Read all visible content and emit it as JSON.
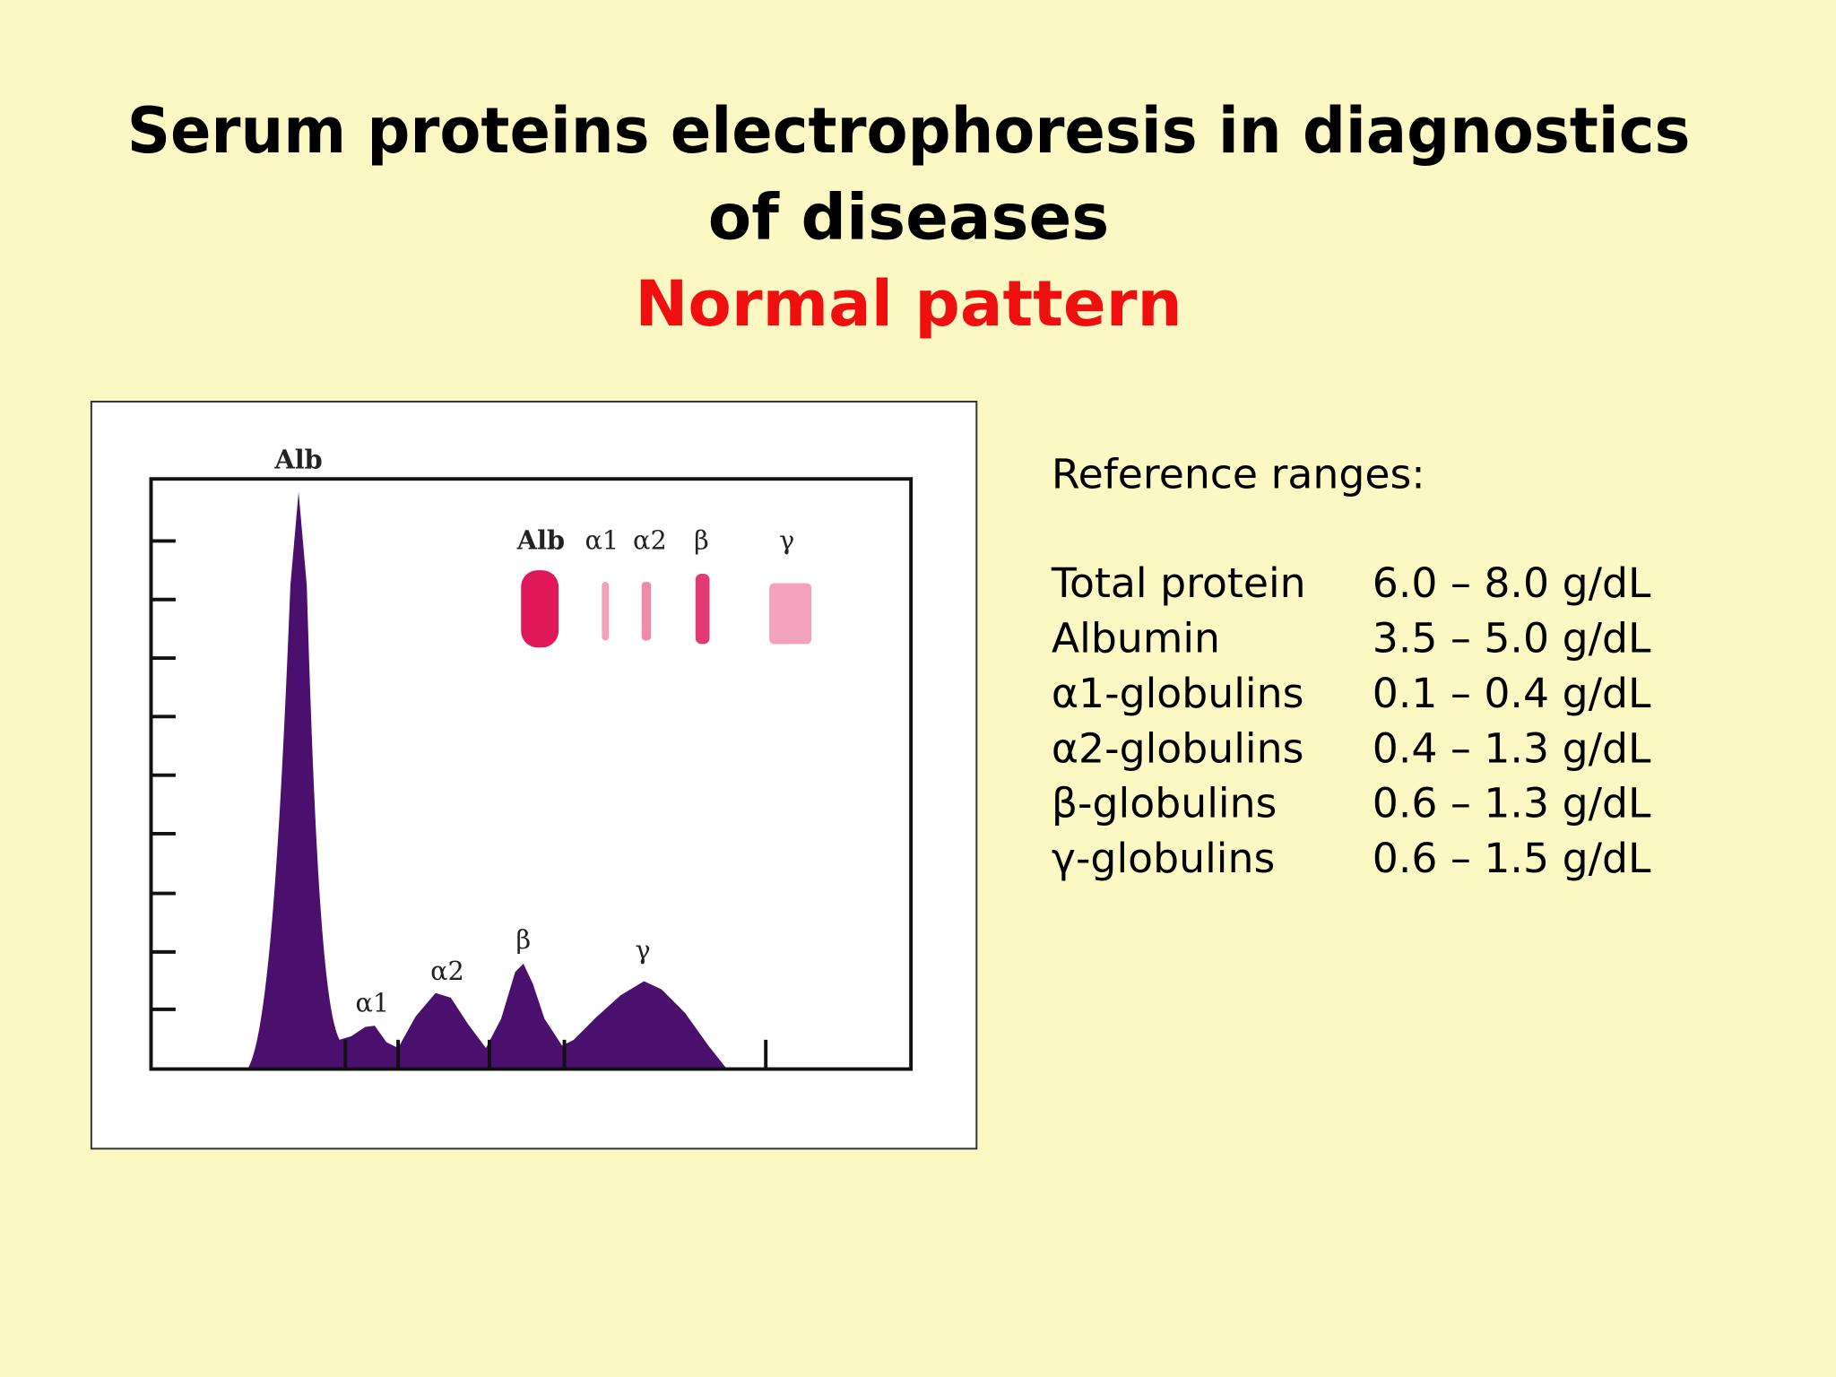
{
  "title_lines": [
    "Serum proteins electrophoresis in diagnostics",
    "of diseases"
  ],
  "subtitle": "Normal pattern",
  "figure": {
    "peak_labels": [
      "Alb",
      "α1",
      "α2",
      "β",
      "γ"
    ],
    "strip_labels": [
      "Alb",
      "α1",
      "α2",
      "β",
      "γ"
    ]
  },
  "reference": {
    "heading": "Reference ranges:",
    "rows": [
      [
        "Total protein",
        "6.0 – 8.0 g/dL"
      ],
      [
        "Albumin",
        "3.5 – 5.0 g/dL"
      ],
      [
        "α1-globulins",
        "0.1 – 0.4 g/dL"
      ],
      [
        "α2-globulins",
        "0.4 – 1.3 g/dL"
      ],
      [
        "β-globulins",
        "0.6 – 1.3 g/dL"
      ],
      [
        "γ-globulins",
        "0.6 – 1.5 g/dL"
      ]
    ]
  }
}
